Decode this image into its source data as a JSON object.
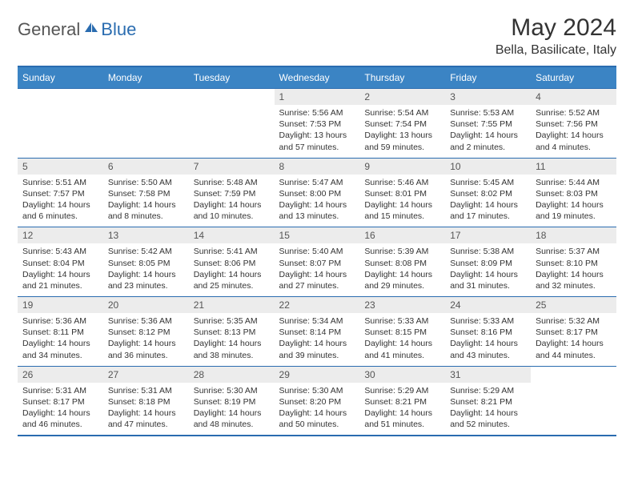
{
  "brand": {
    "general": "General",
    "blue": "Blue"
  },
  "title": "May 2024",
  "location": "Bella, Basilicate, Italy",
  "colors": {
    "header_bg": "#3b84c4",
    "header_text": "#ffffff",
    "border": "#2a6cb0",
    "daynum_bg": "#ececec",
    "text": "#333333",
    "page_bg": "#ffffff"
  },
  "dow": [
    "Sunday",
    "Monday",
    "Tuesday",
    "Wednesday",
    "Thursday",
    "Friday",
    "Saturday"
  ],
  "weeks": [
    [
      null,
      null,
      null,
      {
        "n": "1",
        "sr": "Sunrise: 5:56 AM",
        "ss": "Sunset: 7:53 PM",
        "dl": "Daylight: 13 hours and 57 minutes."
      },
      {
        "n": "2",
        "sr": "Sunrise: 5:54 AM",
        "ss": "Sunset: 7:54 PM",
        "dl": "Daylight: 13 hours and 59 minutes."
      },
      {
        "n": "3",
        "sr": "Sunrise: 5:53 AM",
        "ss": "Sunset: 7:55 PM",
        "dl": "Daylight: 14 hours and 2 minutes."
      },
      {
        "n": "4",
        "sr": "Sunrise: 5:52 AM",
        "ss": "Sunset: 7:56 PM",
        "dl": "Daylight: 14 hours and 4 minutes."
      }
    ],
    [
      {
        "n": "5",
        "sr": "Sunrise: 5:51 AM",
        "ss": "Sunset: 7:57 PM",
        "dl": "Daylight: 14 hours and 6 minutes."
      },
      {
        "n": "6",
        "sr": "Sunrise: 5:50 AM",
        "ss": "Sunset: 7:58 PM",
        "dl": "Daylight: 14 hours and 8 minutes."
      },
      {
        "n": "7",
        "sr": "Sunrise: 5:48 AM",
        "ss": "Sunset: 7:59 PM",
        "dl": "Daylight: 14 hours and 10 minutes."
      },
      {
        "n": "8",
        "sr": "Sunrise: 5:47 AM",
        "ss": "Sunset: 8:00 PM",
        "dl": "Daylight: 14 hours and 13 minutes."
      },
      {
        "n": "9",
        "sr": "Sunrise: 5:46 AM",
        "ss": "Sunset: 8:01 PM",
        "dl": "Daylight: 14 hours and 15 minutes."
      },
      {
        "n": "10",
        "sr": "Sunrise: 5:45 AM",
        "ss": "Sunset: 8:02 PM",
        "dl": "Daylight: 14 hours and 17 minutes."
      },
      {
        "n": "11",
        "sr": "Sunrise: 5:44 AM",
        "ss": "Sunset: 8:03 PM",
        "dl": "Daylight: 14 hours and 19 minutes."
      }
    ],
    [
      {
        "n": "12",
        "sr": "Sunrise: 5:43 AM",
        "ss": "Sunset: 8:04 PM",
        "dl": "Daylight: 14 hours and 21 minutes."
      },
      {
        "n": "13",
        "sr": "Sunrise: 5:42 AM",
        "ss": "Sunset: 8:05 PM",
        "dl": "Daylight: 14 hours and 23 minutes."
      },
      {
        "n": "14",
        "sr": "Sunrise: 5:41 AM",
        "ss": "Sunset: 8:06 PM",
        "dl": "Daylight: 14 hours and 25 minutes."
      },
      {
        "n": "15",
        "sr": "Sunrise: 5:40 AM",
        "ss": "Sunset: 8:07 PM",
        "dl": "Daylight: 14 hours and 27 minutes."
      },
      {
        "n": "16",
        "sr": "Sunrise: 5:39 AM",
        "ss": "Sunset: 8:08 PM",
        "dl": "Daylight: 14 hours and 29 minutes."
      },
      {
        "n": "17",
        "sr": "Sunrise: 5:38 AM",
        "ss": "Sunset: 8:09 PM",
        "dl": "Daylight: 14 hours and 31 minutes."
      },
      {
        "n": "18",
        "sr": "Sunrise: 5:37 AM",
        "ss": "Sunset: 8:10 PM",
        "dl": "Daylight: 14 hours and 32 minutes."
      }
    ],
    [
      {
        "n": "19",
        "sr": "Sunrise: 5:36 AM",
        "ss": "Sunset: 8:11 PM",
        "dl": "Daylight: 14 hours and 34 minutes."
      },
      {
        "n": "20",
        "sr": "Sunrise: 5:36 AM",
        "ss": "Sunset: 8:12 PM",
        "dl": "Daylight: 14 hours and 36 minutes."
      },
      {
        "n": "21",
        "sr": "Sunrise: 5:35 AM",
        "ss": "Sunset: 8:13 PM",
        "dl": "Daylight: 14 hours and 38 minutes."
      },
      {
        "n": "22",
        "sr": "Sunrise: 5:34 AM",
        "ss": "Sunset: 8:14 PM",
        "dl": "Daylight: 14 hours and 39 minutes."
      },
      {
        "n": "23",
        "sr": "Sunrise: 5:33 AM",
        "ss": "Sunset: 8:15 PM",
        "dl": "Daylight: 14 hours and 41 minutes."
      },
      {
        "n": "24",
        "sr": "Sunrise: 5:33 AM",
        "ss": "Sunset: 8:16 PM",
        "dl": "Daylight: 14 hours and 43 minutes."
      },
      {
        "n": "25",
        "sr": "Sunrise: 5:32 AM",
        "ss": "Sunset: 8:17 PM",
        "dl": "Daylight: 14 hours and 44 minutes."
      }
    ],
    [
      {
        "n": "26",
        "sr": "Sunrise: 5:31 AM",
        "ss": "Sunset: 8:17 PM",
        "dl": "Daylight: 14 hours and 46 minutes."
      },
      {
        "n": "27",
        "sr": "Sunrise: 5:31 AM",
        "ss": "Sunset: 8:18 PM",
        "dl": "Daylight: 14 hours and 47 minutes."
      },
      {
        "n": "28",
        "sr": "Sunrise: 5:30 AM",
        "ss": "Sunset: 8:19 PM",
        "dl": "Daylight: 14 hours and 48 minutes."
      },
      {
        "n": "29",
        "sr": "Sunrise: 5:30 AM",
        "ss": "Sunset: 8:20 PM",
        "dl": "Daylight: 14 hours and 50 minutes."
      },
      {
        "n": "30",
        "sr": "Sunrise: 5:29 AM",
        "ss": "Sunset: 8:21 PM",
        "dl": "Daylight: 14 hours and 51 minutes."
      },
      {
        "n": "31",
        "sr": "Sunrise: 5:29 AM",
        "ss": "Sunset: 8:21 PM",
        "dl": "Daylight: 14 hours and 52 minutes."
      },
      null
    ]
  ]
}
